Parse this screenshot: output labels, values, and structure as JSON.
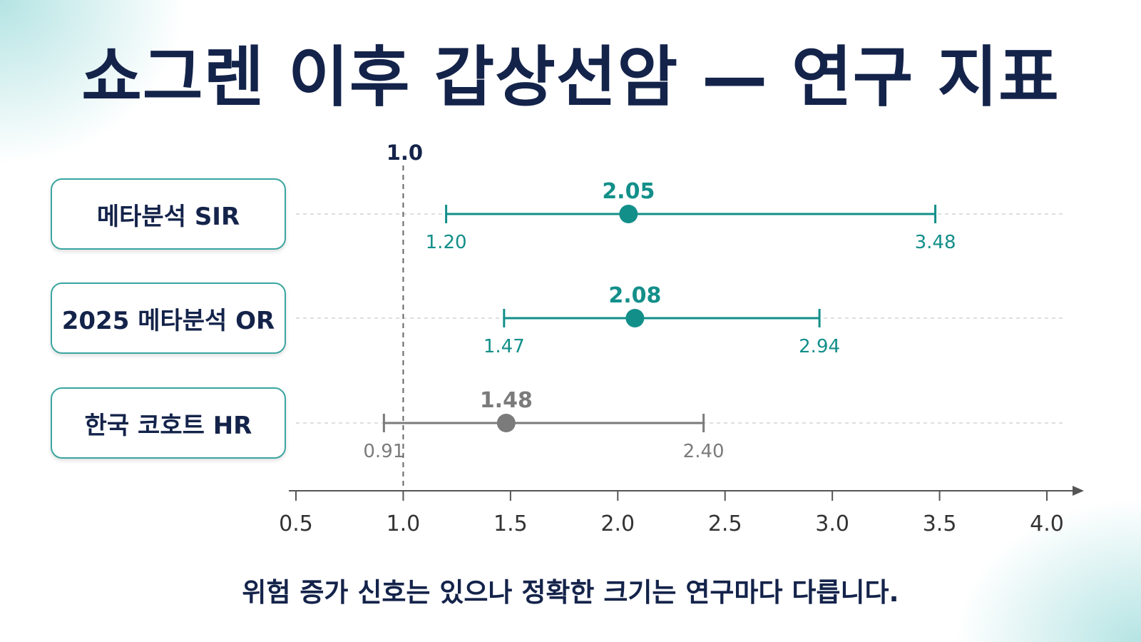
{
  "title": "쇼그렌 이후 갑상선암 — 연구 지표",
  "caption": "위험 증가 신호는 있으나 정확한 크기는 연구마다 다릅니다.",
  "colors": {
    "title": "#14234a",
    "teal": "#138f8a",
    "gray": "#7b7b7b",
    "axis": "#555555",
    "grid": "#d4d4d4"
  },
  "chart_data": {
    "type": "forest",
    "reference_value": 1.0,
    "reference_label": "1.0",
    "xlim": [
      0.5,
      4.0
    ],
    "xticks": [
      0.5,
      1.0,
      1.5,
      2.0,
      2.5,
      3.0,
      3.5,
      4.0
    ],
    "xtick_labels": [
      "0.5",
      "1.0",
      "1.5",
      "2.0",
      "2.5",
      "3.0",
      "3.5",
      "4.0"
    ],
    "rows": [
      {
        "label": "메타분석 SIR",
        "estimate": 2.05,
        "estimate_label": "2.05",
        "lower": 1.2,
        "lower_label": "1.20",
        "upper": 3.48,
        "upper_label": "3.48",
        "color": "teal"
      },
      {
        "label": "2025 메타분석 OR",
        "estimate": 2.08,
        "estimate_label": "2.08",
        "lower": 1.47,
        "lower_label": "1.47",
        "upper": 2.94,
        "upper_label": "2.94",
        "color": "teal"
      },
      {
        "label": "한국 코호트 HR",
        "estimate": 1.48,
        "estimate_label": "1.48",
        "lower": 0.91,
        "lower_label": "0.91",
        "upper": 2.4,
        "upper_label": "2.40",
        "color": "gray"
      }
    ]
  }
}
